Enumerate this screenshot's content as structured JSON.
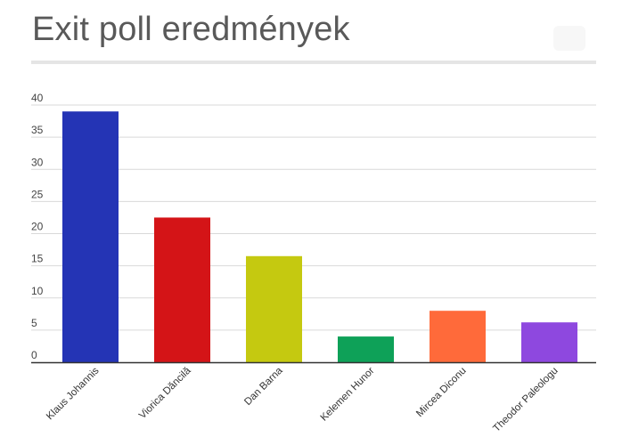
{
  "chart_data": {
    "type": "bar",
    "title": "Exit poll eredmények",
    "xlabel": "",
    "ylabel": "",
    "categories": [
      "Klaus Johannis",
      "Viorica Dăncilă",
      "Dan Barna",
      "Kelemen Hunor",
      "Mircea Diconu",
      "Theodor Paleologu"
    ],
    "values": [
      39,
      22.5,
      16.5,
      4,
      8,
      6.2
    ],
    "colors": [
      "#2434b5",
      "#d41417",
      "#c5c910",
      "#0ea158",
      "#ff6a3a",
      "#8e48df"
    ],
    "ylim": [
      0,
      40
    ],
    "yticks": [
      "0",
      "5",
      "10",
      "15",
      "20",
      "25",
      "30",
      "35",
      "40"
    ],
    "grid": true,
    "legend": "none"
  }
}
